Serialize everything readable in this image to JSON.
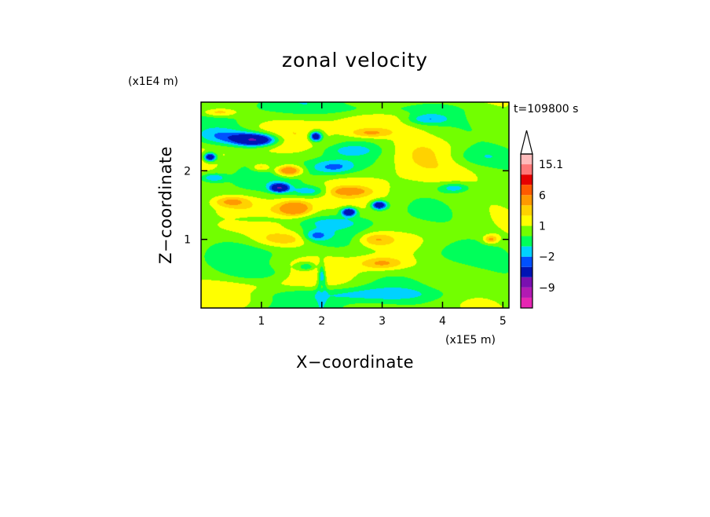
{
  "chart_data": {
    "type": "heatmap",
    "title": "zonal velocity",
    "xlabel": "X−coordinate",
    "ylabel": "Z−coordinate",
    "x_unit": "(x1E5 m)",
    "y_unit": "(x1E4 m)",
    "timestamp": "t=109800 s",
    "xlim": [
      0,
      5.1
    ],
    "ylim": [
      0,
      3.0
    ],
    "x_ticks": [
      {
        "value": 1,
        "label": "1"
      },
      {
        "value": 2,
        "label": "2"
      },
      {
        "value": 3,
        "label": "3"
      },
      {
        "value": 4,
        "label": "4"
      },
      {
        "value": 5,
        "label": "5"
      }
    ],
    "y_ticks": [
      {
        "value": 1,
        "label": "1"
      },
      {
        "value": 2,
        "label": "2"
      }
    ],
    "colorbar": {
      "levels": [
        -15,
        -12,
        -9,
        -6,
        -3,
        -2,
        -1,
        0,
        1,
        2,
        3,
        6,
        9,
        12,
        15.1
      ],
      "colors": [
        "#e626b3",
        "#b21ab3",
        "#7a10b0",
        "#0014b4",
        "#0050ff",
        "#00d2ff",
        "#00ff5a",
        "#72ff00",
        "#ffff00",
        "#ffd200",
        "#ff9900",
        "#ff5a00",
        "#e60000",
        "#ff7777",
        "#ffbbbb"
      ],
      "tick_labels": [
        {
          "value": 15.1,
          "label": "15.1"
        },
        {
          "value": 6,
          "label": "6"
        },
        {
          "value": 1,
          "label": "1"
        },
        {
          "value": -2,
          "label": "−2"
        },
        {
          "value": -9,
          "label": "−9"
        }
      ],
      "extend": "max"
    },
    "features": [
      {
        "x": 0.9,
        "z": 2.45,
        "value": -7,
        "sx": 0.35,
        "sz": 0.09
      },
      {
        "x": 1.9,
        "z": 2.5,
        "value": -6,
        "sx": 0.1,
        "sz": 0.07
      },
      {
        "x": 0.15,
        "z": 2.2,
        "value": -6,
        "sx": 0.1,
        "sz": 0.06
      },
      {
        "x": 1.3,
        "z": 1.75,
        "value": -6,
        "sx": 0.15,
        "sz": 0.06
      },
      {
        "x": 2.45,
        "z": 1.4,
        "value": -6,
        "sx": 0.12,
        "sz": 0.06
      },
      {
        "x": 2.95,
        "z": 1.5,
        "value": -6,
        "sx": 0.12,
        "sz": 0.06
      },
      {
        "x": 2.0,
        "z": 0.35,
        "value": -7,
        "sx": 0.06,
        "sz": 0.22
      },
      {
        "x": 0.4,
        "z": 2.5,
        "value": -2.5,
        "sx": 0.45,
        "sz": 0.12
      },
      {
        "x": 3.75,
        "z": 2.75,
        "value": -2.5,
        "sx": 0.35,
        "sz": 0.08
      },
      {
        "x": 2.2,
        "z": 2.05,
        "value": -2.5,
        "sx": 0.35,
        "sz": 0.1
      },
      {
        "x": 0.2,
        "z": 1.9,
        "value": -2.5,
        "sx": 0.2,
        "sz": 0.06
      },
      {
        "x": 1.8,
        "z": 1.7,
        "value": -2.5,
        "sx": 0.3,
        "sz": 0.08
      },
      {
        "x": 4.2,
        "z": 1.75,
        "value": -2.5,
        "sx": 0.25,
        "sz": 0.07
      },
      {
        "x": 1.9,
        "z": 1.05,
        "value": -2.5,
        "sx": 0.2,
        "sz": 0.08
      },
      {
        "x": 1.75,
        "z": 0.6,
        "value": -2.5,
        "sx": 0.15,
        "sz": 0.06
      },
      {
        "x": 1.45,
        "z": 2.0,
        "value": 5,
        "sx": 0.22,
        "sz": 0.08
      },
      {
        "x": 1.0,
        "z": 2.05,
        "value": 2.5,
        "sx": 0.15,
        "sz": 0.06
      },
      {
        "x": 2.45,
        "z": 1.7,
        "value": 2.5,
        "sx": 0.3,
        "sz": 0.06
      },
      {
        "x": 1.55,
        "z": 1.45,
        "value": 4,
        "sx": 0.25,
        "sz": 0.1
      },
      {
        "x": 1.4,
        "z": 1.0,
        "value": 2.5,
        "sx": 0.5,
        "sz": 0.12
      },
      {
        "x": 2.9,
        "z": 1.0,
        "value": 2.5,
        "sx": 0.3,
        "sz": 0.1
      },
      {
        "x": 3.0,
        "z": 0.65,
        "value": 2.5,
        "sx": 0.35,
        "sz": 0.09
      },
      {
        "x": 0.5,
        "z": 1.55,
        "value": 2.5,
        "sx": 0.3,
        "sz": 0.08
      },
      {
        "x": 2.8,
        "z": 2.55,
        "value": 2.5,
        "sx": 0.35,
        "sz": 0.07
      },
      {
        "x": 0.3,
        "z": 2.85,
        "value": 2.5,
        "sx": 0.3,
        "sz": 0.06
      },
      {
        "x": 2.0,
        "z": 0.3,
        "value": 6,
        "sx": 0.05,
        "sz": 0.15
      },
      {
        "x": 4.8,
        "z": 1.0,
        "value": 3,
        "sx": 0.12,
        "sz": 0.06
      },
      {
        "x": 3.6,
        "z": 2.25,
        "value": 1.5,
        "sx": 0.7,
        "sz": 0.3
      },
      {
        "x": 3.0,
        "z": 2.9,
        "value": -1.5,
        "sx": 1.2,
        "sz": 0.1
      },
      {
        "x": 4.6,
        "z": 2.2,
        "value": -1.5,
        "sx": 0.6,
        "sz": 0.15
      },
      {
        "x": 2.6,
        "z": 0.2,
        "value": -1.5,
        "sx": 1.5,
        "sz": 0.1
      },
      {
        "x": 4.2,
        "z": 0.8,
        "value": -1.2,
        "sx": 0.8,
        "sz": 0.18
      },
      {
        "x": 0.9,
        "z": 1.3,
        "value": -1.2,
        "sx": 0.5,
        "sz": 0.08
      },
      {
        "x": 2.2,
        "z": 1.25,
        "value": -1.2,
        "sx": 0.5,
        "sz": 0.08
      },
      {
        "x": 1.0,
        "z": 0.5,
        "value": -1.2,
        "sx": 0.6,
        "sz": 0.12
      },
      {
        "x": 2.5,
        "z": 2.3,
        "value": -1.2,
        "sx": 0.4,
        "sz": 0.08
      }
    ]
  }
}
